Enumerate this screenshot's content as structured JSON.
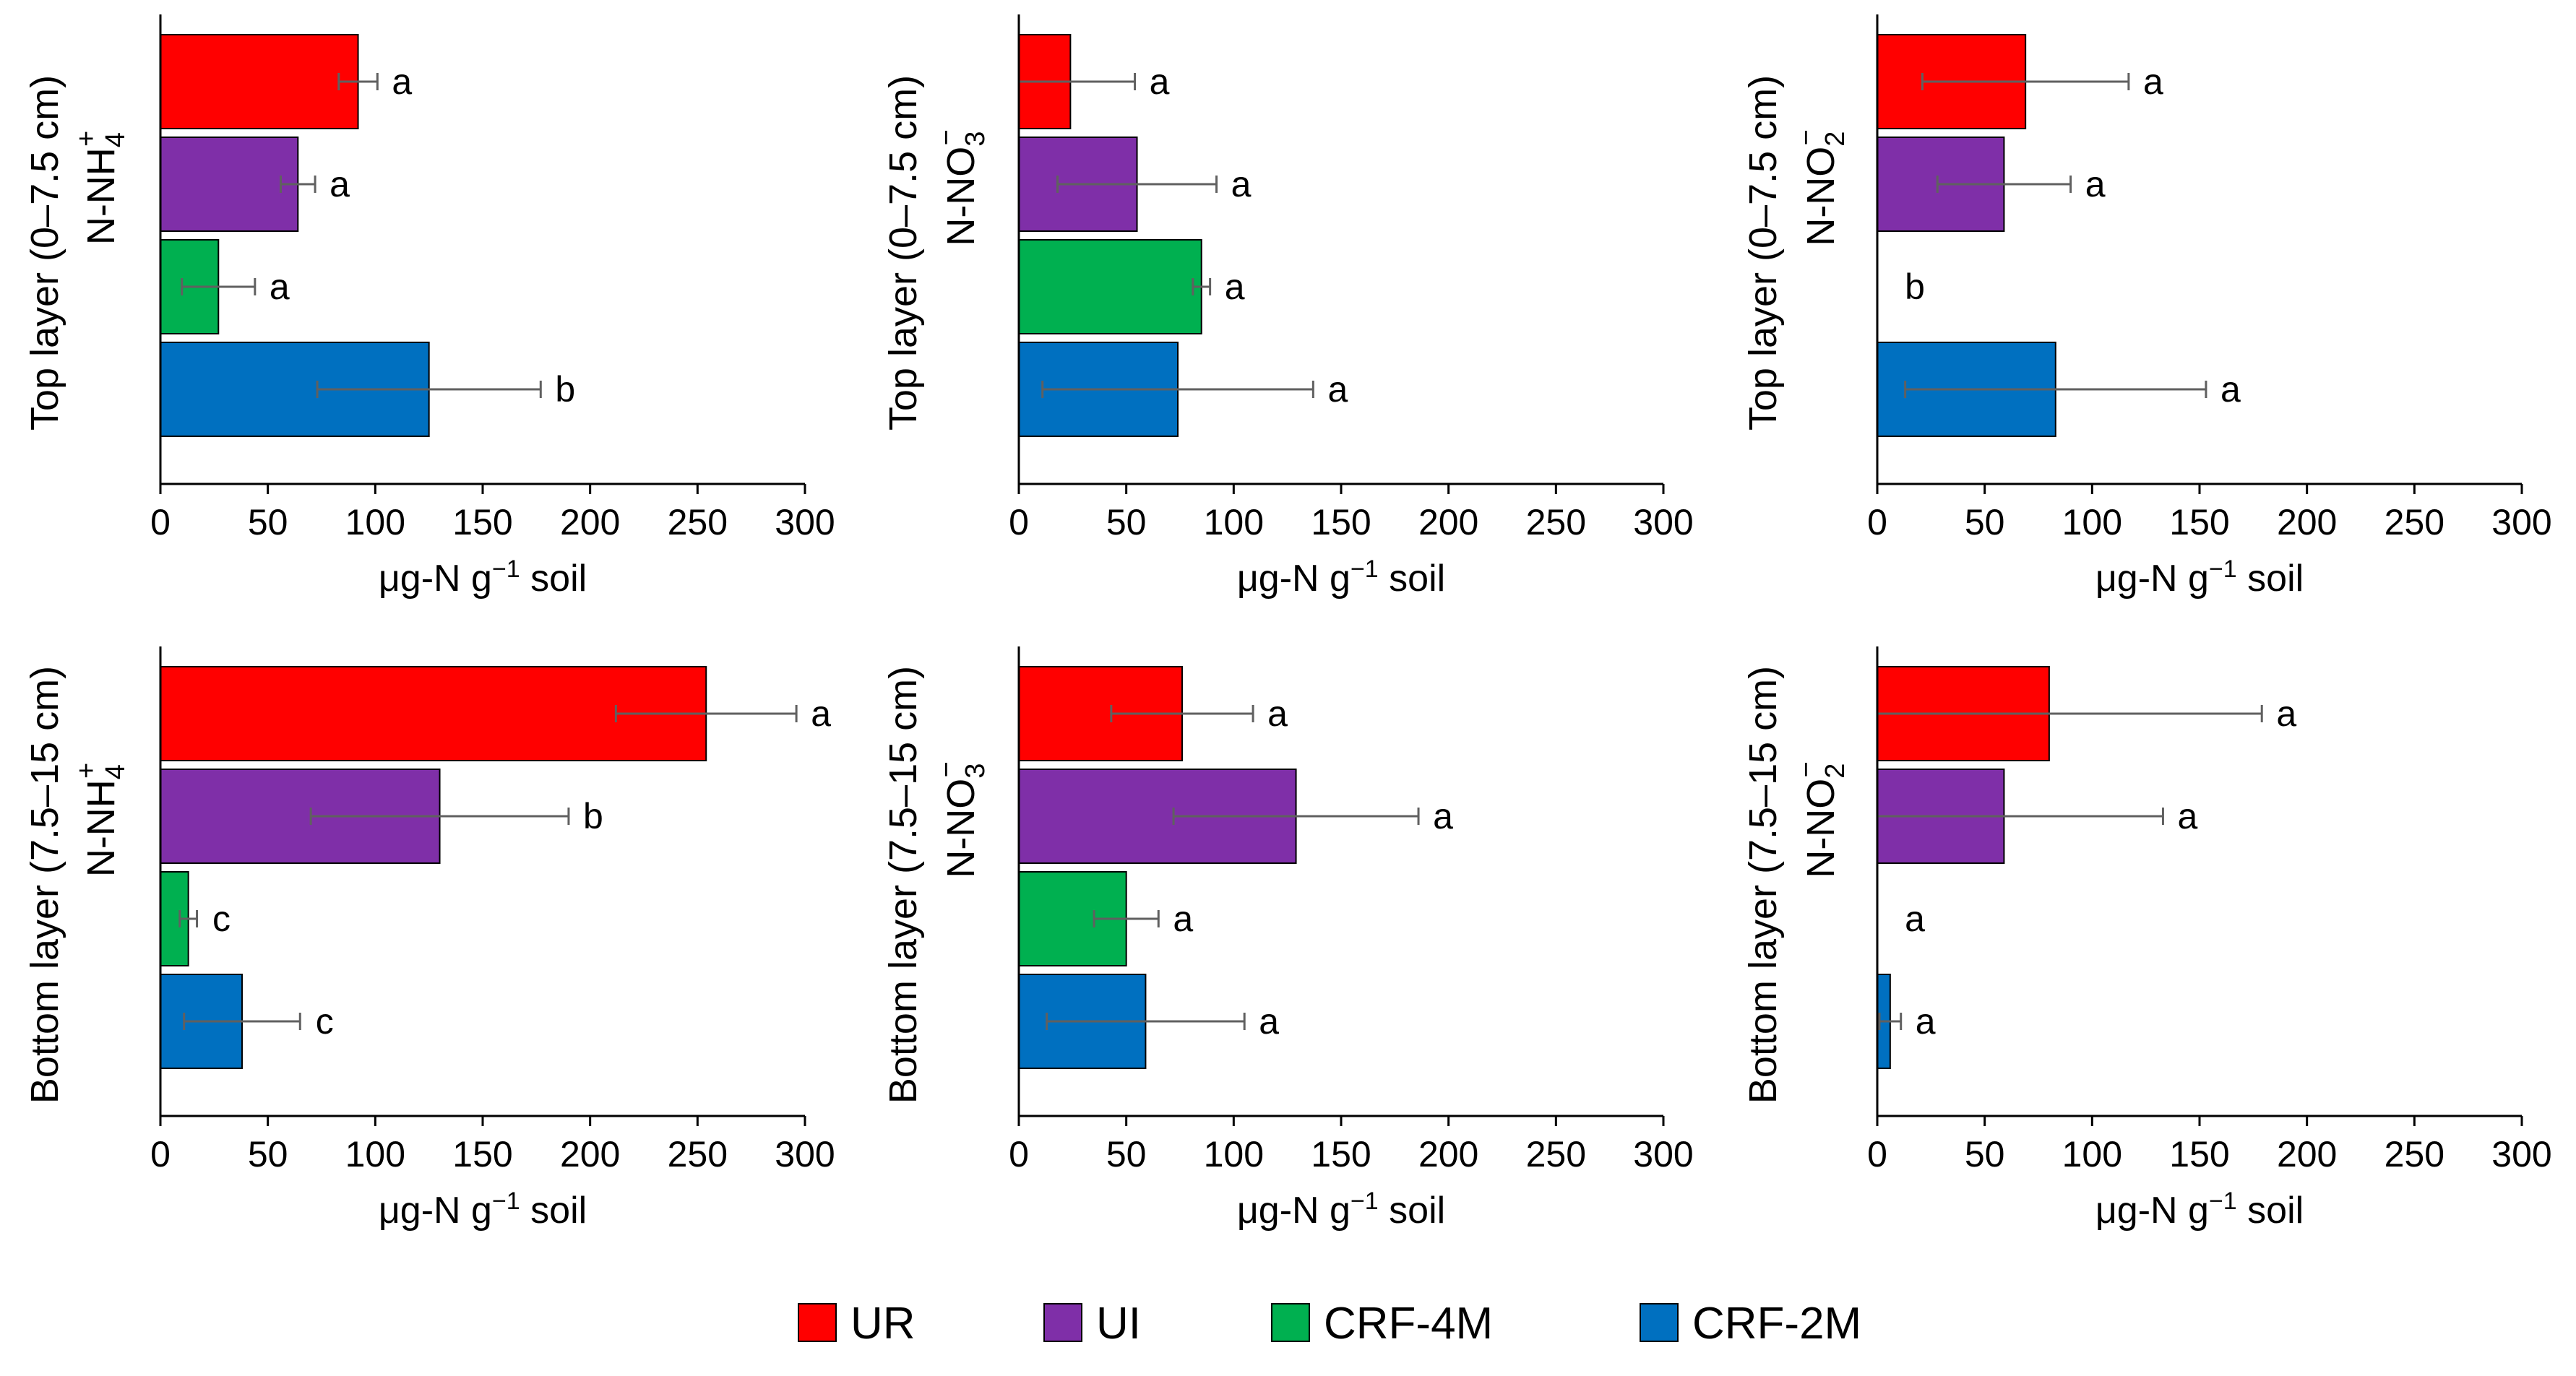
{
  "chart_data": [
    {
      "type": "bar",
      "orientation": "horizontal",
      "ylabel_line1": "Top layer (0–7.5 cm)",
      "ylabel_species_main": "N-NH",
      "ylabel_species_sub": "4",
      "ylabel_species_sup": "+",
      "xlabel_main": "μg-N g",
      "xlabel_sup": "−1",
      "xlabel_tail": " soil",
      "xlim": [
        0,
        300
      ],
      "xticks": [
        "0",
        "50",
        "100",
        "150",
        "200",
        "250",
        "300"
      ],
      "categories": [
        "UR",
        "UI",
        "CRF-4M",
        "CRF-2M"
      ],
      "values": [
        92,
        64,
        27,
        125
      ],
      "errors": [
        9,
        8,
        17,
        52
      ],
      "letters": [
        "a",
        "a",
        "a",
        "b"
      ]
    },
    {
      "type": "bar",
      "orientation": "horizontal",
      "ylabel_line1": "Top layer (0–7.5 cm)",
      "ylabel_species_main": "N-NO",
      "ylabel_species_sub": "3",
      "ylabel_species_sup": "−",
      "xlabel_main": "μg-N g",
      "xlabel_sup": "−1",
      "xlabel_tail": " soil",
      "xlim": [
        0,
        300
      ],
      "xticks": [
        "0",
        "50",
        "100",
        "150",
        "200",
        "250",
        "300"
      ],
      "categories": [
        "UR",
        "UI",
        "CRF-4M",
        "CRF-2M"
      ],
      "values": [
        24,
        55,
        85,
        74
      ],
      "errors": [
        30,
        37,
        4,
        63
      ],
      "letters": [
        "a",
        "a",
        "a",
        "a"
      ]
    },
    {
      "type": "bar",
      "orientation": "horizontal",
      "ylabel_line1": "Top layer (0–7.5 cm)",
      "ylabel_species_main": "N-NO",
      "ylabel_species_sub": "2",
      "ylabel_species_sup": "−",
      "xlabel_main": "μg-N g",
      "xlabel_sup": "−1",
      "xlabel_tail": " soil",
      "xlim": [
        0,
        300
      ],
      "xticks": [
        "0",
        "50",
        "100",
        "150",
        "200",
        "250",
        "300"
      ],
      "categories": [
        "UR",
        "UI",
        "CRF-4M",
        "CRF-2M"
      ],
      "values": [
        69,
        59,
        0,
        83
      ],
      "errors": [
        48,
        31,
        0,
        70
      ],
      "letters": [
        "a",
        "a",
        "b",
        "a"
      ]
    },
    {
      "type": "bar",
      "orientation": "horizontal",
      "ylabel_line1": "Bottom layer (7.5–15 cm)",
      "ylabel_species_main": "N-NH",
      "ylabel_species_sub": "4",
      "ylabel_species_sup": "+",
      "xlabel_main": "μg-N g",
      "xlabel_sup": "−1",
      "xlabel_tail": " soil",
      "xlim": [
        0,
        300
      ],
      "xticks": [
        "0",
        "50",
        "100",
        "150",
        "200",
        "250",
        "300"
      ],
      "categories": [
        "UR",
        "UI",
        "CRF-4M",
        "CRF-2M"
      ],
      "values": [
        254,
        130,
        13,
        38
      ],
      "errors": [
        42,
        60,
        4,
        27
      ],
      "letters": [
        "a",
        "b",
        "c",
        "c"
      ]
    },
    {
      "type": "bar",
      "orientation": "horizontal",
      "ylabel_line1": "Bottom layer (7.5–15 cm)",
      "ylabel_species_main": "N-NO",
      "ylabel_species_sub": "3",
      "ylabel_species_sup": "−",
      "xlabel_main": "μg-N g",
      "xlabel_sup": "−1",
      "xlabel_tail": " soil",
      "xlim": [
        0,
        300
      ],
      "xticks": [
        "0",
        "50",
        "100",
        "150",
        "200",
        "250",
        "300"
      ],
      "categories": [
        "UR",
        "UI",
        "CRF-4M",
        "CRF-2M"
      ],
      "values": [
        76,
        129,
        50,
        59
      ],
      "errors": [
        33,
        57,
        15,
        46
      ],
      "letters": [
        "a",
        "a",
        "a",
        "a"
      ]
    },
    {
      "type": "bar",
      "orientation": "horizontal",
      "ylabel_line1": "Bottom layer (7.5–15 cm)",
      "ylabel_species_main": "N-NO",
      "ylabel_species_sub": "2",
      "ylabel_species_sup": "−",
      "xlabel_main": "μg-N g",
      "xlabel_sup": "−1",
      "xlabel_tail": " soil",
      "xlim": [
        0,
        300
      ],
      "xticks": [
        "0",
        "50",
        "100",
        "150",
        "200",
        "250",
        "300"
      ],
      "categories": [
        "UR",
        "UI",
        "CRF-4M",
        "CRF-2M"
      ],
      "values": [
        80,
        59,
        0,
        6
      ],
      "errors": [
        99,
        74,
        0,
        5
      ],
      "letters": [
        "a",
        "a",
        "a",
        "a"
      ]
    }
  ],
  "legend": [
    {
      "label": "UR",
      "color": "#ff0000"
    },
    {
      "label": "UI",
      "color": "#7f2fa8"
    },
    {
      "label": "CRF-4M",
      "color": "#00b050"
    },
    {
      "label": "CRF-2M",
      "color": "#0070c0"
    }
  ],
  "colors": {
    "bar_outline": "#000000",
    "error_bar": "#606060",
    "axis": "#000000"
  }
}
